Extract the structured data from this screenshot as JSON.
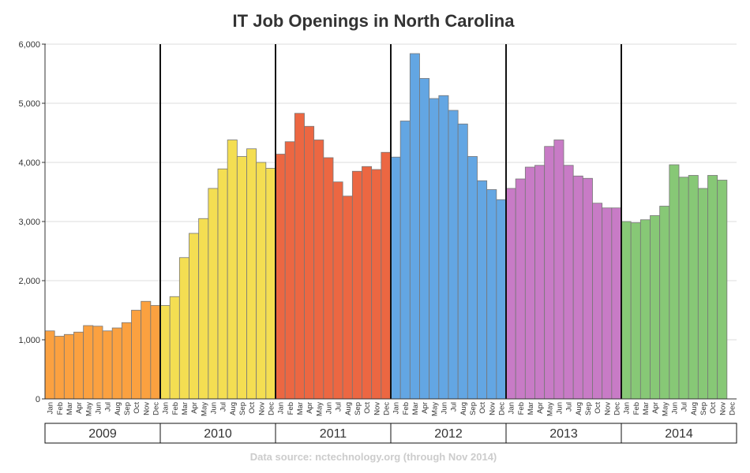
{
  "chart_data": {
    "type": "bar",
    "title": "IT Job Openings in North Carolina",
    "source": "Data source: nctechnology.org (through Nov 2014)",
    "ylim": [
      0,
      6000
    ],
    "yticks": [
      "0",
      "1,000",
      "2,000",
      "3,000",
      "4,000",
      "5,000",
      "6,000"
    ],
    "ytick_values": [
      0,
      1000,
      2000,
      3000,
      4000,
      5000,
      6000
    ],
    "months": [
      "Jan",
      "Feb",
      "Mar",
      "Apr",
      "May",
      "Jun",
      "Jul",
      "Aug",
      "Sep",
      "Oct",
      "Nov",
      "Dec"
    ],
    "grid": true,
    "series": [
      {
        "name": "2009",
        "color": "#fba140",
        "values": [
          1150,
          1060,
          1090,
          1130,
          1240,
          1230,
          1150,
          1200,
          1290,
          1500,
          1650,
          1580
        ]
      },
      {
        "name": "2010",
        "color": "#f4de52",
        "values": [
          1580,
          1730,
          2390,
          2800,
          3050,
          3560,
          3890,
          4380,
          4100,
          4230,
          4000,
          3900
        ]
      },
      {
        "name": "2011",
        "color": "#ec6742",
        "values": [
          4140,
          4350,
          4830,
          4610,
          4380,
          4080,
          3670,
          3430,
          3850,
          3930,
          3880,
          4170
        ]
      },
      {
        "name": "2012",
        "color": "#63a6e3",
        "values": [
          4090,
          4700,
          5840,
          5420,
          5080,
          5130,
          4880,
          4650,
          4100,
          3690,
          3540,
          3370
        ]
      },
      {
        "name": "2013",
        "color": "#c87bc6",
        "values": [
          3560,
          3720,
          3920,
          3950,
          4270,
          4380,
          3950,
          3770,
          3730,
          3310,
          3230,
          3230
        ]
      },
      {
        "name": "2014",
        "color": "#87c876",
        "values": [
          3000,
          2980,
          3030,
          3100,
          3260,
          3960,
          3750,
          3780,
          3560,
          3780,
          3700
        ]
      }
    ]
  }
}
